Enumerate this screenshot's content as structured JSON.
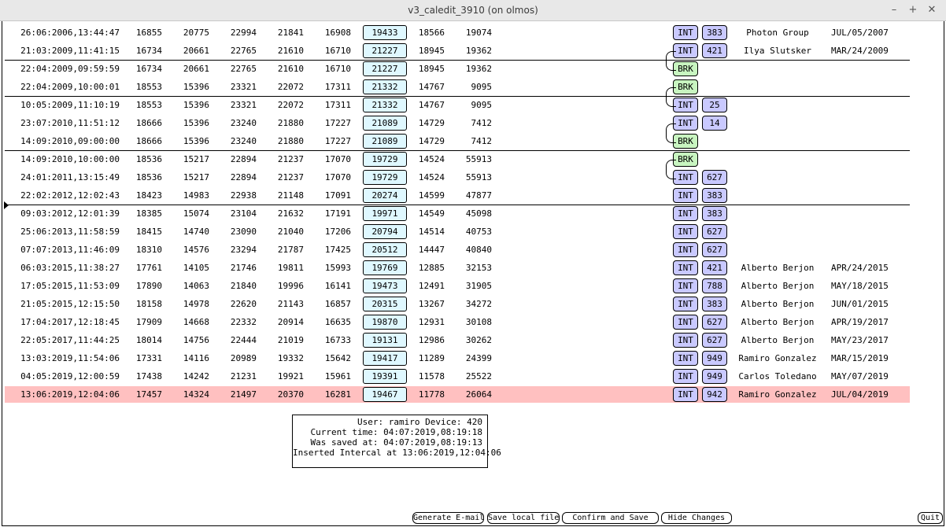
{
  "window": {
    "title": "v3_caledit_3910 (on olmos)",
    "controls": {
      "minimize": "–",
      "maximize": "+",
      "close": "✕"
    }
  },
  "rows": [
    {
      "time": "26:06:2006,13:44:47",
      "c1": "16855",
      "c2": "20775",
      "c3": "22994",
      "c4": "21841",
      "c5": "16908",
      "val": "19433",
      "c7": "18566",
      "c8": "19074",
      "type": "INT",
      "num": "383",
      "author": "Photon Group",
      "date": "JUL/05/2007"
    },
    {
      "time": "21:03:2009,11:41:15",
      "c1": "16734",
      "c2": "20661",
      "c3": "22765",
      "c4": "21610",
      "c5": "16710",
      "val": "21227",
      "c7": "18945",
      "c8": "19362",
      "type": "INT",
      "num": "421",
      "author": "Ilya Slutsker",
      "date": "MAR/24/2009"
    },
    {
      "time": "22:04:2009,09:59:59",
      "c1": "16734",
      "c2": "20661",
      "c3": "22765",
      "c4": "21610",
      "c5": "16710",
      "val": "21227",
      "c7": "18945",
      "c8": "19362",
      "type": "BRK",
      "num": "",
      "author": "",
      "date": ""
    },
    {
      "time": "22:04:2009,10:00:01",
      "c1": "18553",
      "c2": "15396",
      "c3": "23321",
      "c4": "22072",
      "c5": "17311",
      "val": "21332",
      "c7": "14767",
      "c8": "9095",
      "type": "BRK",
      "num": "",
      "author": "",
      "date": ""
    },
    {
      "time": "10:05:2009,11:10:19",
      "c1": "18553",
      "c2": "15396",
      "c3": "23321",
      "c4": "22072",
      "c5": "17311",
      "val": "21332",
      "c7": "14767",
      "c8": "9095",
      "type": "INT",
      "num": "25",
      "author": "",
      "date": ""
    },
    {
      "time": "23:07:2010,11:51:12",
      "c1": "18666",
      "c2": "15396",
      "c3": "23240",
      "c4": "21880",
      "c5": "17227",
      "val": "21089",
      "c7": "14729",
      "c8": "7412",
      "type": "INT",
      "num": "14",
      "author": "",
      "date": ""
    },
    {
      "time": "14:09:2010,09:00:00",
      "c1": "18666",
      "c2": "15396",
      "c3": "23240",
      "c4": "21880",
      "c5": "17227",
      "val": "21089",
      "c7": "14729",
      "c8": "7412",
      "type": "BRK",
      "num": "",
      "author": "",
      "date": ""
    },
    {
      "time": "14:09:2010,10:00:00",
      "c1": "18536",
      "c2": "15217",
      "c3": "22894",
      "c4": "21237",
      "c5": "17070",
      "val": "19729",
      "c7": "14524",
      "c8": "55913",
      "type": "BRK",
      "num": "",
      "author": "",
      "date": ""
    },
    {
      "time": "24:01:2011,13:15:49",
      "c1": "18536",
      "c2": "15217",
      "c3": "22894",
      "c4": "21237",
      "c5": "17070",
      "val": "19729",
      "c7": "14524",
      "c8": "55913",
      "type": "INT",
      "num": "627",
      "author": "",
      "date": ""
    },
    {
      "time": "22:02:2012,12:02:43",
      "c1": "18423",
      "c2": "14983",
      "c3": "22938",
      "c4": "21148",
      "c5": "17091",
      "val": "20274",
      "c7": "14599",
      "c8": "47877",
      "type": "INT",
      "num": "383",
      "author": "",
      "date": ""
    },
    {
      "time": "09:03:2012,12:01:39",
      "c1": "18385",
      "c2": "15074",
      "c3": "23104",
      "c4": "21632",
      "c5": "17191",
      "val": "19971",
      "c7": "14549",
      "c8": "45098",
      "type": "INT",
      "num": "383",
      "author": "",
      "date": ""
    },
    {
      "time": "25:06:2013,11:58:59",
      "c1": "18415",
      "c2": "14740",
      "c3": "23090",
      "c4": "21040",
      "c5": "17206",
      "val": "20794",
      "c7": "14514",
      "c8": "40753",
      "type": "INT",
      "num": "627",
      "author": "",
      "date": ""
    },
    {
      "time": "07:07:2013,11:46:09",
      "c1": "18310",
      "c2": "14576",
      "c3": "23294",
      "c4": "21787",
      "c5": "17425",
      "val": "20512",
      "c7": "14447",
      "c8": "40840",
      "type": "INT",
      "num": "627",
      "author": "",
      "date": ""
    },
    {
      "time": "06:03:2015,11:38:27",
      "c1": "17761",
      "c2": "14105",
      "c3": "21746",
      "c4": "19811",
      "c5": "15993",
      "val": "19769",
      "c7": "12885",
      "c8": "32153",
      "type": "INT",
      "num": "421",
      "author": "Alberto Berjon",
      "date": "APR/24/2015"
    },
    {
      "time": "17:05:2015,11:53:09",
      "c1": "17890",
      "c2": "14063",
      "c3": "21840",
      "c4": "19996",
      "c5": "16141",
      "val": "19473",
      "c7": "12491",
      "c8": "31905",
      "type": "INT",
      "num": "788",
      "author": "Alberto Berjon",
      "date": "MAY/18/2015"
    },
    {
      "time": "21:05:2015,12:15:50",
      "c1": "18158",
      "c2": "14978",
      "c3": "22620",
      "c4": "21143",
      "c5": "16857",
      "val": "20315",
      "c7": "13267",
      "c8": "34272",
      "type": "INT",
      "num": "383",
      "author": "Alberto Berjon",
      "date": "JUN/01/2015"
    },
    {
      "time": "17:04:2017,12:18:45",
      "c1": "17909",
      "c2": "14668",
      "c3": "22332",
      "c4": "20914",
      "c5": "16635",
      "val": "19870",
      "c7": "12931",
      "c8": "30108",
      "type": "INT",
      "num": "627",
      "author": "Alberto Berjon",
      "date": "APR/19/2017"
    },
    {
      "time": "22:05:2017,11:44:25",
      "c1": "18014",
      "c2": "14756",
      "c3": "22444",
      "c4": "21019",
      "c5": "16733",
      "val": "19131",
      "c7": "12986",
      "c8": "30262",
      "type": "INT",
      "num": "627",
      "author": "Alberto Berjon",
      "date": "MAY/23/2017"
    },
    {
      "time": "13:03:2019,11:54:06",
      "c1": "17331",
      "c2": "14116",
      "c3": "20989",
      "c4": "19332",
      "c5": "15642",
      "val": "19417",
      "c7": "11289",
      "c8": "24399",
      "type": "INT",
      "num": "949",
      "author": "Ramiro Gonzalez",
      "date": "MAR/15/2019"
    },
    {
      "time": "04:05:2019,12:00:59",
      "c1": "17438",
      "c2": "14242",
      "c3": "21231",
      "c4": "19921",
      "c5": "15961",
      "val": "19391",
      "c7": "11578",
      "c8": "25522",
      "type": "INT",
      "num": "949",
      "author": "Carlos Toledano",
      "date": "MAY/07/2019"
    },
    {
      "time": "13:06:2019,12:04:06",
      "c1": "17457",
      "c2": "14324",
      "c3": "21497",
      "c4": "20370",
      "c5": "16281",
      "val": "19467",
      "c7": "11778",
      "c8": "26064",
      "type": "INT",
      "num": "942",
      "author": "Ramiro Gonzalez",
      "date": "JUL/04/2019"
    }
  ],
  "selected_row": 20,
  "info": {
    "user": "User: ramiro Device: 420",
    "current_time": "Current time: 04:07:2019,08:19:18",
    "saved_at": "Was saved at: 04:07:2019,08:19:13",
    "inserted": "Inserted Intercal at 13:06:2019,12:04:06"
  },
  "buttons": {
    "email": "Generate E-mail",
    "save_local": "Save local file",
    "confirm": "Confirm and Save",
    "hide": "Hide Changes",
    "quit": "Quit"
  },
  "colors": {
    "int_badge": "#c9c9ff",
    "brk_badge": "#c8f5c0",
    "value_box": "#dff8ff",
    "selected_row": "#ffc0c0"
  }
}
